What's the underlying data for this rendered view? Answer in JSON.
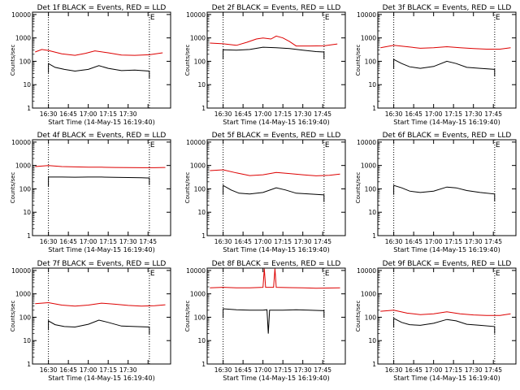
{
  "chart_data": {
    "type": "line",
    "x_ticks": [
      "16:30",
      "16:45",
      "17:00",
      "17:15",
      "17:30",
      "17:45"
    ],
    "x_ticks_short": [
      "16:30",
      "16:45",
      "17:00",
      "17:15",
      "17:30"
    ],
    "x_ticks_alt": [
      "16:30",
      "16:45",
      "17:00",
      "17:15",
      "17:30",
      "17:45"
    ],
    "y_ticks": [
      "1",
      "10",
      "100",
      "1000",
      "10000"
    ],
    "xlabel": "Start Time (14-May-15 16:19:40)",
    "ylabel": "Counts/sec",
    "x_range_min": [
      -12,
      92
    ],
    "ylim_log10": [
      0,
      4.1
    ],
    "vline_marks_min": [
      0,
      76
    ],
    "mark_glyph": "E",
    "series_colors": {
      "events": "#000000",
      "lld": "#dd0000"
    },
    "panels": [
      {
        "title": "Det 1f BLACK = Events, RED = LLD",
        "events": [
          [
            0,
            80
          ],
          [
            5,
            55
          ],
          [
            12,
            45
          ],
          [
            20,
            38
          ],
          [
            30,
            45
          ],
          [
            38,
            65
          ],
          [
            45,
            50
          ],
          [
            55,
            40
          ],
          [
            65,
            42
          ],
          [
            76,
            38
          ]
        ],
        "lld": [
          [
            -10,
            250
          ],
          [
            -5,
            320
          ],
          [
            0,
            290
          ],
          [
            10,
            210
          ],
          [
            20,
            180
          ],
          [
            28,
            220
          ],
          [
            35,
            280
          ],
          [
            45,
            230
          ],
          [
            55,
            185
          ],
          [
            65,
            180
          ],
          [
            76,
            190
          ],
          [
            86,
            230
          ]
        ]
      },
      {
        "title": "Det 2f BLACK = Events, RED = LLD",
        "events": [
          [
            0,
            310
          ],
          [
            10,
            300
          ],
          [
            20,
            320
          ],
          [
            30,
            400
          ],
          [
            40,
            380
          ],
          [
            50,
            350
          ],
          [
            60,
            300
          ],
          [
            70,
            260
          ],
          [
            76,
            250
          ]
        ],
        "lld": [
          [
            -10,
            600
          ],
          [
            0,
            560
          ],
          [
            10,
            480
          ],
          [
            18,
            650
          ],
          [
            25,
            900
          ],
          [
            30,
            1000
          ],
          [
            36,
            900
          ],
          [
            40,
            1200
          ],
          [
            45,
            1000
          ],
          [
            50,
            700
          ],
          [
            55,
            450
          ],
          [
            65,
            450
          ],
          [
            76,
            460
          ],
          [
            86,
            550
          ]
        ]
      },
      {
        "title": "Det 3f BLACK = Events, RED = LLD",
        "events": [
          [
            0,
            120
          ],
          [
            6,
            80
          ],
          [
            12,
            58
          ],
          [
            20,
            50
          ],
          [
            30,
            60
          ],
          [
            40,
            100
          ],
          [
            47,
            80
          ],
          [
            55,
            55
          ],
          [
            65,
            50
          ],
          [
            76,
            45
          ]
        ],
        "lld": [
          [
            -10,
            380
          ],
          [
            0,
            480
          ],
          [
            10,
            420
          ],
          [
            20,
            360
          ],
          [
            30,
            380
          ],
          [
            40,
            420
          ],
          [
            50,
            380
          ],
          [
            60,
            350
          ],
          [
            70,
            330
          ],
          [
            80,
            330
          ],
          [
            88,
            380
          ]
        ]
      },
      {
        "title": "Det 4f BLACK = Events, RED = LLD",
        "events": [
          [
            0,
            320
          ],
          [
            10,
            320
          ],
          [
            20,
            315
          ],
          [
            30,
            320
          ],
          [
            40,
            320
          ],
          [
            50,
            310
          ],
          [
            60,
            305
          ],
          [
            70,
            300
          ],
          [
            76,
            290
          ]
        ],
        "lld": [
          [
            -10,
            900
          ],
          [
            0,
            1000
          ],
          [
            10,
            900
          ],
          [
            20,
            870
          ],
          [
            30,
            850
          ],
          [
            40,
            840
          ],
          [
            50,
            820
          ],
          [
            60,
            810
          ],
          [
            70,
            800
          ],
          [
            80,
            800
          ],
          [
            88,
            820
          ]
        ]
      },
      {
        "title": "Det 5f BLACK = Events, RED = LLD",
        "events": [
          [
            0,
            140
          ],
          [
            6,
            90
          ],
          [
            12,
            65
          ],
          [
            20,
            60
          ],
          [
            30,
            70
          ],
          [
            40,
            110
          ],
          [
            47,
            90
          ],
          [
            55,
            65
          ],
          [
            65,
            60
          ],
          [
            76,
            55
          ]
        ],
        "lld": [
          [
            -10,
            600
          ],
          [
            0,
            650
          ],
          [
            10,
            480
          ],
          [
            20,
            370
          ],
          [
            30,
            400
          ],
          [
            40,
            500
          ],
          [
            50,
            450
          ],
          [
            60,
            400
          ],
          [
            70,
            360
          ],
          [
            80,
            380
          ],
          [
            88,
            430
          ]
        ]
      },
      {
        "title": "Det 6f BLACK = Events, RED = LLD",
        "events": [
          [
            0,
            140
          ],
          [
            6,
            110
          ],
          [
            12,
            80
          ],
          [
            20,
            70
          ],
          [
            30,
            80
          ],
          [
            40,
            120
          ],
          [
            47,
            110
          ],
          [
            55,
            85
          ],
          [
            65,
            70
          ],
          [
            76,
            60
          ]
        ],
        "lld": []
      },
      {
        "title": "Det 7f BLACK = Events, RED = LLD",
        "events": [
          [
            0,
            70
          ],
          [
            5,
            48
          ],
          [
            12,
            40
          ],
          [
            20,
            38
          ],
          [
            30,
            50
          ],
          [
            38,
            75
          ],
          [
            45,
            60
          ],
          [
            55,
            42
          ],
          [
            65,
            40
          ],
          [
            76,
            38
          ]
        ],
        "lld": [
          [
            -10,
            380
          ],
          [
            0,
            420
          ],
          [
            10,
            330
          ],
          [
            20,
            300
          ],
          [
            30,
            330
          ],
          [
            40,
            400
          ],
          [
            50,
            360
          ],
          [
            60,
            320
          ],
          [
            70,
            300
          ],
          [
            80,
            310
          ],
          [
            88,
            340
          ]
        ]
      },
      {
        "title": "Det 8f BLACK = Events, RED = LLD",
        "events": [
          [
            0,
            230
          ],
          [
            10,
            210
          ],
          [
            20,
            200
          ],
          [
            30,
            200
          ],
          [
            33,
            210
          ],
          [
            34,
            20
          ],
          [
            35,
            200
          ],
          [
            45,
            200
          ],
          [
            55,
            210
          ],
          [
            65,
            200
          ],
          [
            76,
            190
          ]
        ],
        "lld": [
          [
            -10,
            1800
          ],
          [
            0,
            1900
          ],
          [
            10,
            1800
          ],
          [
            20,
            1800
          ],
          [
            30,
            1900
          ],
          [
            31,
            12000
          ],
          [
            32,
            1900
          ],
          [
            38,
            1900
          ],
          [
            39,
            12000
          ],
          [
            40,
            1900
          ],
          [
            50,
            1850
          ],
          [
            60,
            1800
          ],
          [
            70,
            1750
          ],
          [
            88,
            1800
          ]
        ]
      },
      {
        "title": "Det 9f BLACK = Events, RED = LLD",
        "events": [
          [
            0,
            90
          ],
          [
            6,
            60
          ],
          [
            12,
            48
          ],
          [
            20,
            45
          ],
          [
            30,
            55
          ],
          [
            40,
            80
          ],
          [
            47,
            70
          ],
          [
            55,
            50
          ],
          [
            65,
            45
          ],
          [
            76,
            40
          ]
        ],
        "lld": [
          [
            -10,
            180
          ],
          [
            0,
            200
          ],
          [
            10,
            150
          ],
          [
            20,
            130
          ],
          [
            30,
            140
          ],
          [
            40,
            170
          ],
          [
            50,
            140
          ],
          [
            60,
            125
          ],
          [
            70,
            120
          ],
          [
            80,
            120
          ],
          [
            88,
            140
          ]
        ]
      }
    ]
  }
}
